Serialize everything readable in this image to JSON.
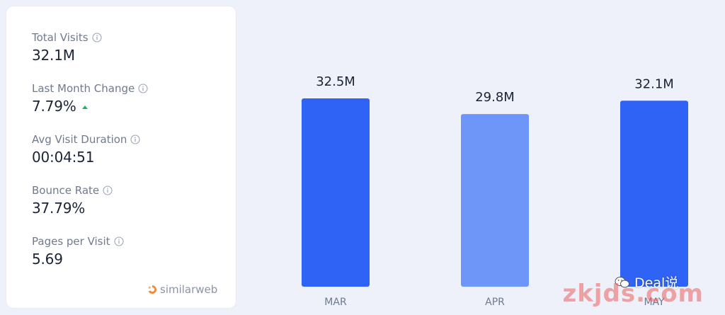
{
  "metrics": [
    {
      "label": "Total Visits",
      "value": "32.1M"
    },
    {
      "label": "Last Month Change",
      "value": "7.79%"
    },
    {
      "label": "Avg Visit Duration",
      "value": "00:04:51"
    },
    {
      "label": "Bounce Rate",
      "value": "37.79%"
    },
    {
      "label": "Pages per Visit",
      "value": "5.69"
    }
  ],
  "brand": {
    "name": "similarweb"
  },
  "colors": {
    "bar_primary": "#2f63f6",
    "bar_secondary": "#6e96f9",
    "trend_up": "#20b46a"
  },
  "chart_data": {
    "type": "bar",
    "categories": [
      "MAR",
      "APR",
      "MAY"
    ],
    "values": [
      32.5,
      29.8,
      32.1
    ],
    "value_labels": [
      "32.5M",
      "29.8M",
      "32.1M"
    ],
    "title": "",
    "xlabel": "",
    "ylabel": "",
    "grid": false
  },
  "overlay": {
    "wechat_label": "Deal说",
    "watermark": "zkjds.com"
  }
}
